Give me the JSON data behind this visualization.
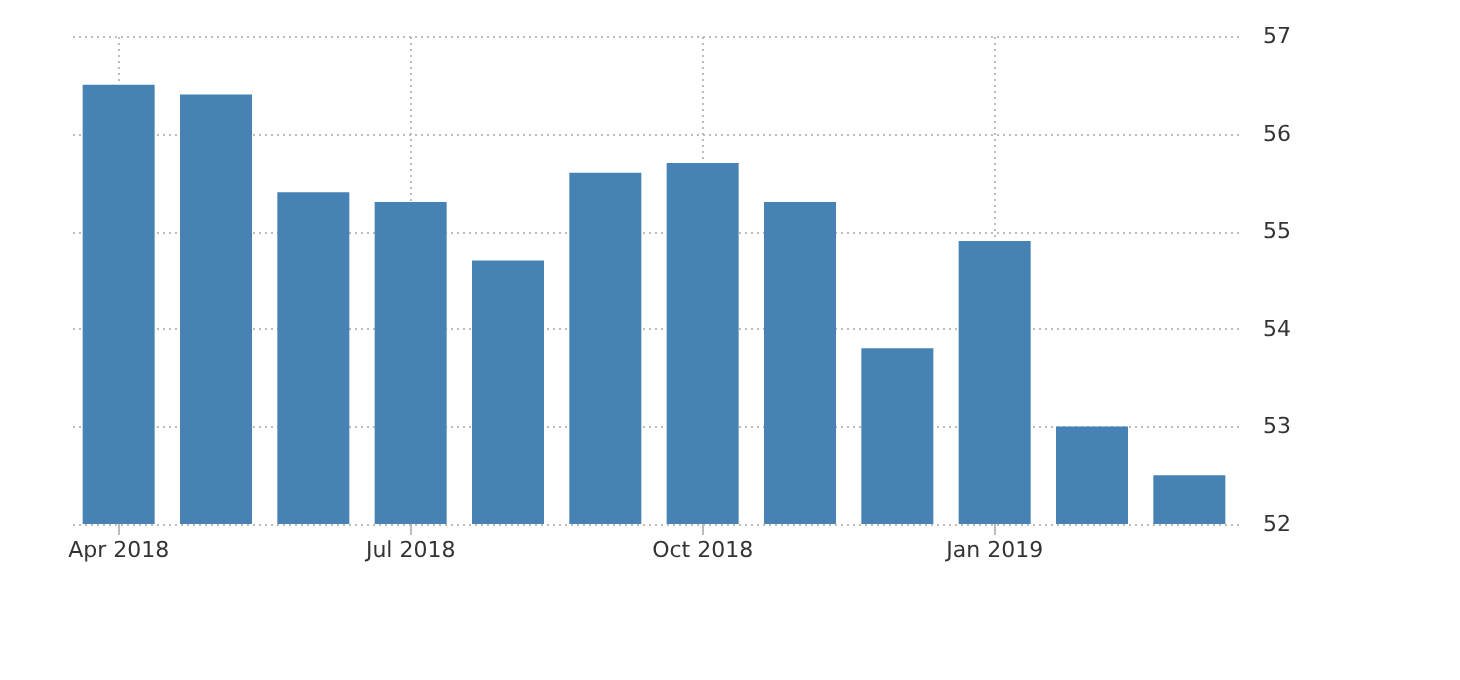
{
  "chart_data": {
    "type": "bar",
    "categories": [
      "Apr 2018",
      null,
      null,
      "Jul 2018",
      null,
      null,
      "Oct 2018",
      null,
      null,
      "Jan 2019",
      null,
      null
    ],
    "values": [
      56.5,
      56.4,
      55.4,
      55.3,
      54.7,
      55.6,
      55.7,
      55.3,
      53.8,
      54.9,
      53.0,
      52.5
    ],
    "color": "#4682b4",
    "ylim": [
      52,
      57
    ],
    "yticks": [
      52,
      53,
      54,
      55,
      56,
      57
    ],
    "grid": true
  }
}
